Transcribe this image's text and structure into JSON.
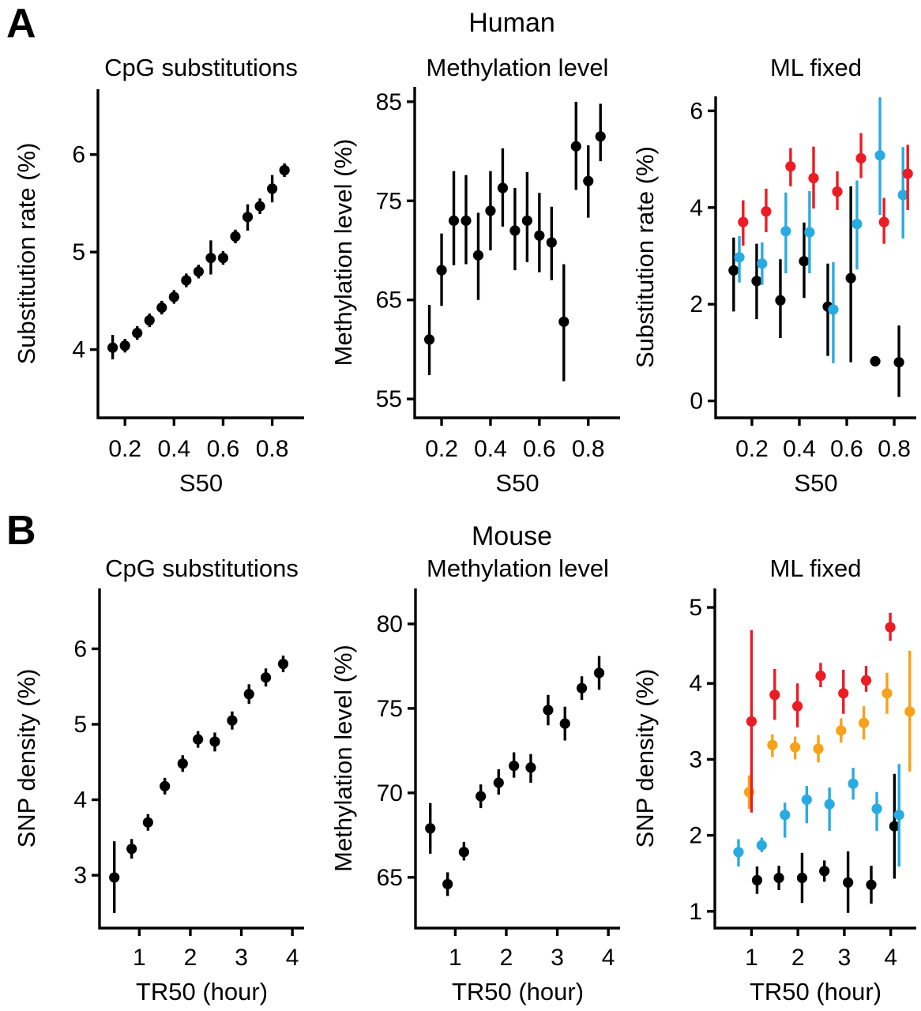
{
  "panels": {
    "A": {
      "letter": "A",
      "header": "Human"
    },
    "B": {
      "letter": "B",
      "header": "Mouse"
    }
  },
  "colors": {
    "black": "#000000",
    "red": "#ec1c24",
    "cyan": "#29abe2",
    "orange": "#f7a21a"
  },
  "chart_data": [
    {
      "id": "A1",
      "panel": "A",
      "type": "scatter",
      "title": "CpG substitutions",
      "xlabel": "S50",
      "ylabel": "Substitution rate (%)",
      "xlim": [
        0.09,
        0.93
      ],
      "ylim": [
        3.3,
        6.67
      ],
      "xticks": [
        0.2,
        0.4,
        0.6,
        0.8
      ],
      "xtick_labels": [
        "0.2",
        "0.4",
        "0.6",
        "0.8"
      ],
      "yticks": [
        4,
        5,
        6
      ],
      "ytick_labels": [
        "4",
        "5",
        "6"
      ],
      "series": [
        {
          "name": "substitution-rate",
          "color": "black",
          "points": [
            [
              0.15,
              4.02,
              3.9,
              4.15
            ],
            [
              0.2,
              4.04,
              3.97,
              4.11
            ],
            [
              0.25,
              4.17,
              4.1,
              4.24
            ],
            [
              0.3,
              4.3,
              4.23,
              4.37
            ],
            [
              0.35,
              4.43,
              4.36,
              4.5
            ],
            [
              0.4,
              4.54,
              4.47,
              4.61
            ],
            [
              0.45,
              4.71,
              4.64,
              4.78
            ],
            [
              0.5,
              4.8,
              4.73,
              4.87
            ],
            [
              0.55,
              4.94,
              4.77,
              5.12
            ],
            [
              0.6,
              4.94,
              4.87,
              5.01
            ],
            [
              0.65,
              5.16,
              5.09,
              5.23
            ],
            [
              0.7,
              5.36,
              5.22,
              5.49
            ],
            [
              0.75,
              5.47,
              5.39,
              5.55
            ],
            [
              0.8,
              5.65,
              5.51,
              5.79
            ],
            [
              0.85,
              5.84,
              5.77,
              5.91
            ]
          ]
        }
      ]
    },
    {
      "id": "A2",
      "panel": "A",
      "type": "scatter",
      "title": "Methylation level",
      "xlabel": "S50",
      "ylabel": "Methylation level (%)",
      "xlim": [
        0.09,
        0.93
      ],
      "ylim": [
        53.1,
        86.5
      ],
      "xticks": [
        0.2,
        0.4,
        0.6,
        0.8
      ],
      "xtick_labels": [
        "0.2",
        "0.4",
        "0.6",
        "0.8"
      ],
      "yticks": [
        55,
        65,
        75,
        85
      ],
      "ytick_labels": [
        "55",
        "65",
        "75",
        "85"
      ],
      "series": [
        {
          "name": "methylation-level",
          "color": "black",
          "points": [
            [
              0.15,
              61.0,
              57.4,
              64.5
            ],
            [
              0.2,
              68.0,
              64.4,
              71.7
            ],
            [
              0.25,
              73.0,
              68.5,
              78.0
            ],
            [
              0.3,
              73.0,
              68.6,
              77.6
            ],
            [
              0.35,
              69.5,
              65.0,
              73.8
            ],
            [
              0.4,
              74.0,
              70.0,
              78.0
            ],
            [
              0.45,
              76.3,
              72.4,
              80.3
            ],
            [
              0.5,
              72.0,
              68.0,
              76.3
            ],
            [
              0.55,
              73.0,
              68.8,
              77.9
            ],
            [
              0.6,
              71.5,
              67.8,
              75.8
            ],
            [
              0.65,
              70.8,
              67.0,
              74.4
            ],
            [
              0.7,
              62.8,
              56.8,
              68.6
            ],
            [
              0.75,
              80.5,
              76.1,
              85.0
            ],
            [
              0.8,
              77.0,
              73.3,
              80.6
            ],
            [
              0.85,
              81.5,
              79.0,
              84.8
            ]
          ]
        }
      ]
    },
    {
      "id": "A3",
      "panel": "A",
      "type": "scatter",
      "title": "ML fixed",
      "xlabel": "S50",
      "ylabel": "Substitution rate (%)",
      "xlim": [
        0.047,
        0.893
      ],
      "ylim": [
        -0.35,
        6.3
      ],
      "xticks": [
        0.2,
        0.4,
        0.6,
        0.8
      ],
      "xtick_labels": [
        "0.2",
        "0.4",
        "0.6",
        "0.8"
      ],
      "yticks": [
        0,
        2,
        4,
        6
      ],
      "ytick_labels": [
        "0",
        "2",
        "4",
        "6"
      ],
      "series": [
        {
          "name": "ml-low",
          "color": "black",
          "points": [
            [
              0.123,
              2.7,
              1.85,
              3.38
            ],
            [
              0.22,
              2.48,
              1.69,
              3.25
            ],
            [
              0.32,
              2.08,
              1.3,
              2.93
            ],
            [
              0.42,
              2.89,
              2.13,
              3.69
            ],
            [
              0.52,
              1.95,
              0.93,
              2.84
            ],
            [
              0.617,
              2.54,
              0.8,
              4.44
            ],
            [
              0.72,
              0.82,
              0.82,
              0.82
            ],
            [
              0.82,
              0.8,
              0.08,
              1.56
            ]
          ]
        },
        {
          "name": "ml-mid",
          "color": "cyan",
          "points": [
            [
              0.147,
              2.97,
              2.45,
              3.41
            ],
            [
              0.243,
              2.84,
              2.4,
              3.28
            ],
            [
              0.343,
              3.51,
              2.64,
              4.31
            ],
            [
              0.443,
              3.49,
              2.64,
              4.34
            ],
            [
              0.543,
              1.89,
              0.78,
              2.87
            ],
            [
              0.643,
              3.66,
              2.72,
              4.56
            ],
            [
              0.74,
              5.08,
              3.85,
              6.28
            ],
            [
              0.837,
              4.26,
              3.36,
              5.25
            ]
          ]
        },
        {
          "name": "ml-high",
          "color": "red",
          "points": [
            [
              0.163,
              3.7,
              3.21,
              4.15
            ],
            [
              0.26,
              3.92,
              3.49,
              4.39
            ],
            [
              0.363,
              4.85,
              4.44,
              5.23
            ],
            [
              0.46,
              4.61,
              3.98,
              5.26
            ],
            [
              0.56,
              4.33,
              3.95,
              4.75
            ],
            [
              0.66,
              5.02,
              4.61,
              5.54
            ],
            [
              0.757,
              3.7,
              3.25,
              4.2
            ],
            [
              0.857,
              4.7,
              3.95,
              5.3
            ]
          ]
        }
      ]
    },
    {
      "id": "B1",
      "panel": "B",
      "type": "scatter",
      "title": "CpG substitutions",
      "xlabel": "TR50 (hour)",
      "ylabel": "SNP density (%)",
      "xlim": [
        0.22,
        4.23
      ],
      "ylim": [
        2.3,
        6.8
      ],
      "xticks": [
        1,
        2,
        3,
        4
      ],
      "xtick_labels": [
        "1",
        "2",
        "3",
        "4"
      ],
      "yticks": [
        3,
        4,
        5,
        6
      ],
      "ytick_labels": [
        "3",
        "4",
        "5",
        "6"
      ],
      "series": [
        {
          "name": "snp-density",
          "color": "black",
          "points": [
            [
              0.51,
              2.97,
              2.5,
              3.45
            ],
            [
              0.85,
              3.35,
              3.22,
              3.48
            ],
            [
              1.17,
              3.7,
              3.59,
              3.81
            ],
            [
              1.5,
              4.18,
              4.07,
              4.29
            ],
            [
              1.85,
              4.48,
              4.37,
              4.59
            ],
            [
              2.15,
              4.8,
              4.69,
              4.91
            ],
            [
              2.48,
              4.77,
              4.64,
              4.89
            ],
            [
              2.82,
              5.05,
              4.93,
              5.17
            ],
            [
              3.15,
              5.4,
              5.27,
              5.53
            ],
            [
              3.48,
              5.62,
              5.5,
              5.74
            ],
            [
              3.82,
              5.8,
              5.69,
              5.91
            ]
          ]
        }
      ]
    },
    {
      "id": "B2",
      "panel": "B",
      "type": "scatter",
      "title": "Methylation level",
      "xlabel": "TR50 (hour)",
      "ylabel": "Methylation level (%)",
      "xlim": [
        0.22,
        4.23
      ],
      "ylim": [
        62.0,
        82.1
      ],
      "xticks": [
        1,
        2,
        3,
        4
      ],
      "xtick_labels": [
        "1",
        "2",
        "3",
        "4"
      ],
      "yticks": [
        65,
        70,
        75,
        80
      ],
      "ytick_labels": [
        "65",
        "70",
        "75",
        "80"
      ],
      "series": [
        {
          "name": "methylation-level",
          "color": "black",
          "points": [
            [
              0.51,
              67.9,
              66.4,
              69.4
            ],
            [
              0.85,
              64.6,
              63.9,
              65.3
            ],
            [
              1.17,
              66.5,
              66.0,
              67.1
            ],
            [
              1.5,
              69.8,
              69.1,
              70.5
            ],
            [
              1.85,
              70.6,
              69.9,
              71.4
            ],
            [
              2.15,
              71.6,
              70.9,
              72.4
            ],
            [
              2.48,
              71.5,
              70.6,
              72.3
            ],
            [
              2.82,
              74.9,
              74.0,
              75.8
            ],
            [
              3.15,
              74.1,
              73.1,
              75.1
            ],
            [
              3.48,
              76.2,
              75.5,
              76.9
            ],
            [
              3.82,
              77.1,
              76.1,
              78.1
            ]
          ]
        }
      ]
    },
    {
      "id": "B3",
      "panel": "B",
      "type": "scatter",
      "title": "ML fixed",
      "xlabel": "TR50 (hour)",
      "ylabel": "SNP density (%)",
      "xlim": [
        0.21,
        4.55
      ],
      "ylim": [
        0.78,
        5.25
      ],
      "xticks": [
        1,
        2,
        3,
        4
      ],
      "xtick_labels": [
        "1",
        "2",
        "3",
        "4"
      ],
      "yticks": [
        1,
        2,
        3,
        4,
        5
      ],
      "ytick_labels": [
        "1",
        "2",
        "3",
        "4",
        "5"
      ],
      "series": [
        {
          "name": "ml-q1",
          "color": "black",
          "points": [
            [
              1.12,
              1.41,
              1.23,
              1.59
            ],
            [
              1.59,
              1.44,
              1.28,
              1.6
            ],
            [
              2.09,
              1.44,
              1.11,
              1.77
            ],
            [
              2.57,
              1.53,
              1.39,
              1.67
            ],
            [
              3.08,
              1.38,
              0.98,
              1.79
            ],
            [
              3.58,
              1.35,
              1.1,
              1.6
            ],
            [
              4.08,
              2.12,
              1.43,
              2.81
            ]
          ]
        },
        {
          "name": "ml-q2",
          "color": "cyan",
          "points": [
            [
              0.72,
              1.78,
              1.59,
              1.95
            ],
            [
              1.22,
              1.87,
              1.78,
              1.97
            ],
            [
              1.72,
              2.27,
              1.97,
              2.43
            ],
            [
              2.19,
              2.47,
              2.16,
              2.65
            ],
            [
              2.68,
              2.41,
              2.06,
              2.63
            ],
            [
              3.19,
              2.68,
              2.47,
              2.89
            ],
            [
              3.7,
              2.35,
              2.06,
              2.57
            ],
            [
              4.18,
              2.27,
              1.59,
              2.94
            ]
          ]
        },
        {
          "name": "ml-q3",
          "color": "orange",
          "points": [
            [
              0.95,
              2.57,
              2.35,
              2.79
            ],
            [
              1.45,
              3.19,
              3.03,
              3.33
            ],
            [
              1.94,
              3.16,
              3.0,
              3.3
            ],
            [
              2.44,
              3.14,
              2.96,
              3.32
            ],
            [
              2.93,
              3.38,
              3.22,
              3.54
            ],
            [
              3.42,
              3.48,
              3.26,
              3.7
            ],
            [
              3.92,
              3.87,
              3.6,
              4.14
            ],
            [
              4.41,
              3.63,
              2.84,
              4.43
            ]
          ]
        },
        {
          "name": "ml-q4",
          "color": "red",
          "points": [
            [
              1.0,
              3.5,
              2.3,
              4.7
            ],
            [
              1.5,
              3.85,
              3.52,
              4.19
            ],
            [
              1.99,
              3.7,
              3.42,
              4.0
            ],
            [
              2.49,
              4.1,
              3.95,
              4.27
            ],
            [
              2.98,
              3.87,
              3.6,
              4.18
            ],
            [
              3.47,
              4.04,
              3.89,
              4.23
            ],
            [
              3.99,
              4.74,
              4.56,
              4.93
            ]
          ]
        }
      ]
    }
  ]
}
